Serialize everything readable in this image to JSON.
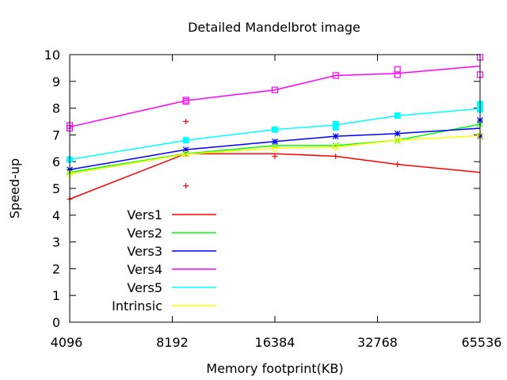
{
  "chart_data": {
    "type": "line",
    "title": "Detailed Mandelbrot image",
    "xlabel": "Memory footprint(KB)",
    "ylabel": "Speed-up",
    "xscale": "log2",
    "xlim": [
      4096,
      65536
    ],
    "ylim": [
      0,
      10
    ],
    "xticks": [
      4096,
      8192,
      16384,
      32768,
      65536
    ],
    "xtick_labels": [
      "4096",
      "8192",
      "16384",
      "32768",
      "65536"
    ],
    "yticks": [
      0,
      1,
      2,
      3,
      4,
      5,
      6,
      7,
      8,
      9,
      10
    ],
    "grid": false,
    "legend_position": "bottom-left",
    "series": [
      {
        "name": "Vers1",
        "color": "#ff0000",
        "marker": "plus",
        "x": [
          4096,
          8980,
          16384,
          24700,
          37500,
          65536
        ],
        "y": [
          4.6,
          6.3,
          6.3,
          6.2,
          5.9,
          5.6
        ],
        "samples": [
          [
            4096,
            4.6
          ],
          [
            8980,
            7.5
          ],
          [
            8980,
            5.1
          ],
          [
            8980,
            6.3
          ],
          [
            16384,
            6.2
          ],
          [
            24700,
            6.2
          ],
          [
            37500,
            5.9
          ]
        ]
      },
      {
        "name": "Vers2",
        "color": "#00ff00",
        "marker": "cross",
        "x": [
          4096,
          8980,
          16384,
          24700,
          37500,
          65536
        ],
        "y": [
          5.6,
          6.3,
          6.6,
          6.6,
          6.8,
          7.4
        ],
        "samples": [
          [
            4096,
            5.6
          ],
          [
            8980,
            6.3
          ],
          [
            16384,
            6.6
          ],
          [
            24700,
            6.6
          ],
          [
            37500,
            6.8
          ],
          [
            65536,
            7.4
          ]
        ]
      },
      {
        "name": "Vers3",
        "color": "#0000ff",
        "marker": "star",
        "x": [
          4096,
          8980,
          16384,
          24700,
          37500,
          65536
        ],
        "y": [
          5.7,
          6.45,
          6.75,
          6.95,
          7.05,
          7.25
        ],
        "samples": [
          [
            4096,
            5.7
          ],
          [
            8980,
            6.45
          ],
          [
            16384,
            6.75
          ],
          [
            24700,
            6.95
          ],
          [
            37500,
            7.05
          ],
          [
            65536,
            7.55
          ],
          [
            65536,
            6.95
          ]
        ]
      },
      {
        "name": "Vers4",
        "color": "#ff00ff",
        "marker": "box",
        "x": [
          4096,
          8980,
          16384,
          24700,
          37500,
          65536
        ],
        "y": [
          7.3,
          8.28,
          8.68,
          9.22,
          9.3,
          9.57
        ],
        "samples": [
          [
            4096,
            7.35
          ],
          [
            4096,
            7.25
          ],
          [
            8980,
            8.3
          ],
          [
            8980,
            8.25
          ],
          [
            16384,
            8.68
          ],
          [
            24700,
            9.22
          ],
          [
            37500,
            9.45
          ],
          [
            37500,
            9.25
          ],
          [
            65536,
            9.9
          ],
          [
            65536,
            9.25
          ]
        ]
      },
      {
        "name": "Vers5",
        "color": "#00ffff",
        "marker": "filledbox",
        "x": [
          4096,
          8980,
          16384,
          24700,
          37500,
          65536
        ],
        "y": [
          6.08,
          6.8,
          7.2,
          7.37,
          7.72,
          7.98
        ],
        "samples": [
          [
            4096,
            6.08
          ],
          [
            8980,
            6.8
          ],
          [
            16384,
            7.2
          ],
          [
            24700,
            7.4
          ],
          [
            24700,
            7.28
          ],
          [
            37500,
            7.72
          ],
          [
            65536,
            8.15
          ],
          [
            65536,
            7.95
          ]
        ]
      },
      {
        "name": "Intrinsic",
        "color": "#ffff00",
        "marker": "circle",
        "x": [
          4096,
          8980,
          16384,
          24700,
          37500,
          65536
        ],
        "y": [
          5.55,
          6.28,
          6.5,
          6.55,
          6.8,
          6.97
        ],
        "samples": [
          [
            4096,
            5.55
          ],
          [
            8980,
            6.28
          ],
          [
            16384,
            6.5
          ],
          [
            24700,
            6.55
          ],
          [
            37500,
            6.8
          ],
          [
            65536,
            6.97
          ]
        ]
      }
    ]
  }
}
